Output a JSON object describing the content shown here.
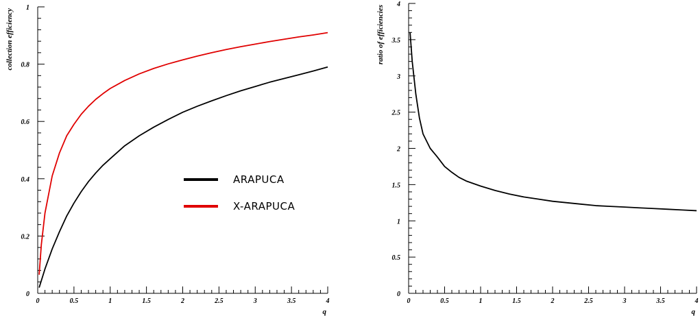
{
  "chart_data": [
    {
      "type": "line",
      "xlabel": "q",
      "ylabel": "collection efficiency",
      "xlim": [
        0,
        4
      ],
      "ylim": [
        0,
        1
      ],
      "xticks": [
        "0",
        "0.5",
        "1",
        "1.5",
        "2",
        "2.5",
        "3",
        "3.5",
        "4"
      ],
      "yticks": [
        "0",
        "0.2",
        "0.4",
        "0.6",
        "0.8",
        "1"
      ],
      "grid": false,
      "legend_position": "center-right",
      "series": [
        {
          "name": "ARAPUCA",
          "color": "#000000",
          "x": [
            0.02,
            0.1,
            0.2,
            0.3,
            0.4,
            0.5,
            0.6,
            0.7,
            0.8,
            0.9,
            1.0,
            1.2,
            1.4,
            1.6,
            1.8,
            2.0,
            2.2,
            2.4,
            2.6,
            2.8,
            3.0,
            3.2,
            3.4,
            3.6,
            3.8,
            4.0
          ],
          "y": [
            0.02,
            0.085,
            0.155,
            0.215,
            0.27,
            0.315,
            0.355,
            0.39,
            0.42,
            0.447,
            0.47,
            0.515,
            0.55,
            0.58,
            0.607,
            0.632,
            0.653,
            0.672,
            0.69,
            0.707,
            0.722,
            0.737,
            0.75,
            0.763,
            0.776,
            0.79
          ]
        },
        {
          "name": "X-ARAPUCA",
          "color": "#e00000",
          "x": [
            0.02,
            0.05,
            0.1,
            0.2,
            0.3,
            0.4,
            0.5,
            0.6,
            0.7,
            0.8,
            0.9,
            1.0,
            1.2,
            1.4,
            1.6,
            1.8,
            2.0,
            2.2,
            2.4,
            2.6,
            2.8,
            3.0,
            3.2,
            3.4,
            3.6,
            3.8,
            4.0
          ],
          "y": [
            0.065,
            0.17,
            0.28,
            0.41,
            0.49,
            0.55,
            0.59,
            0.625,
            0.653,
            0.677,
            0.697,
            0.715,
            0.743,
            0.766,
            0.785,
            0.801,
            0.815,
            0.828,
            0.84,
            0.851,
            0.861,
            0.87,
            0.879,
            0.887,
            0.895,
            0.902,
            0.91
          ]
        }
      ]
    },
    {
      "type": "line",
      "xlabel": "q",
      "ylabel": "ratio of efficiencies",
      "xlim": [
        0,
        4
      ],
      "ylim": [
        0,
        4
      ],
      "xticks": [
        "0",
        "0.5",
        "1",
        "1.5",
        "2",
        "2.5",
        "3",
        "3.5",
        "4"
      ],
      "yticks": [
        "0",
        "0.5",
        "1",
        "1.5",
        "2",
        "2.5",
        "3",
        "3.5",
        "4"
      ],
      "grid": false,
      "series": [
        {
          "name": "",
          "color": "#000000",
          "x": [
            0.02,
            0.05,
            0.1,
            0.15,
            0.2,
            0.3,
            0.4,
            0.5,
            0.6,
            0.7,
            0.8,
            1.0,
            1.2,
            1.4,
            1.6,
            1.8,
            2.0,
            2.2,
            2.4,
            2.6,
            2.8,
            3.0,
            3.2,
            3.4,
            3.6,
            3.8,
            4.0
          ],
          "y": [
            3.6,
            3.2,
            2.75,
            2.42,
            2.2,
            2.0,
            1.88,
            1.75,
            1.67,
            1.6,
            1.55,
            1.48,
            1.42,
            1.37,
            1.33,
            1.3,
            1.27,
            1.25,
            1.23,
            1.21,
            1.2,
            1.19,
            1.18,
            1.17,
            1.16,
            1.15,
            1.14
          ]
        }
      ]
    }
  ]
}
